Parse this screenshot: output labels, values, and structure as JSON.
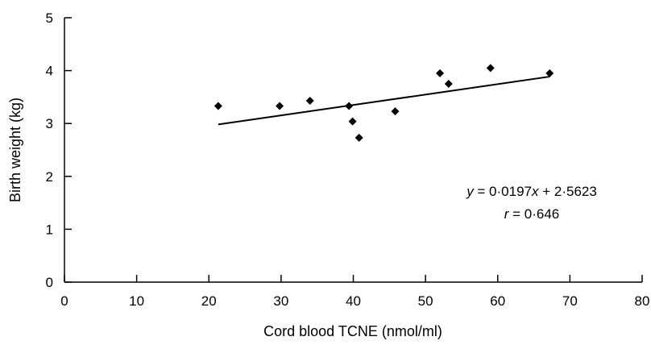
{
  "chart_data": {
    "type": "scatter",
    "title": "",
    "xlabel": "Cord blood TCNE (nmol/ml)",
    "ylabel": "Birth weight (kg)",
    "xlim": [
      0,
      80
    ],
    "ylim": [
      0,
      5
    ],
    "x_ticks": [
      0,
      10,
      20,
      30,
      40,
      50,
      60,
      70,
      80
    ],
    "y_ticks": [
      0,
      1,
      2,
      3,
      4,
      5
    ],
    "grid": false,
    "marker": "diamond",
    "color": "#000000",
    "points": [
      {
        "x": 21.3,
        "y": 3.33
      },
      {
        "x": 29.8,
        "y": 3.33
      },
      {
        "x": 34.0,
        "y": 3.43
      },
      {
        "x": 39.4,
        "y": 3.33
      },
      {
        "x": 39.9,
        "y": 3.04
      },
      {
        "x": 40.8,
        "y": 2.73
      },
      {
        "x": 45.8,
        "y": 3.23
      },
      {
        "x": 52.0,
        "y": 3.95
      },
      {
        "x": 53.2,
        "y": 3.75
      },
      {
        "x": 59.0,
        "y": 4.05
      },
      {
        "x": 67.2,
        "y": 3.95
      }
    ],
    "fit_line": {
      "slope": 0.0197,
      "intercept": 2.5623,
      "x_range": [
        21.3,
        67.2
      ]
    },
    "annotation": {
      "equation_lhs": "y",
      "equation_rhs": " = 0·0197",
      "equation_x": "x",
      "equation_tail": " + 2·5623",
      "r_lhs": "r",
      "r_rhs": " = 0·646"
    }
  }
}
